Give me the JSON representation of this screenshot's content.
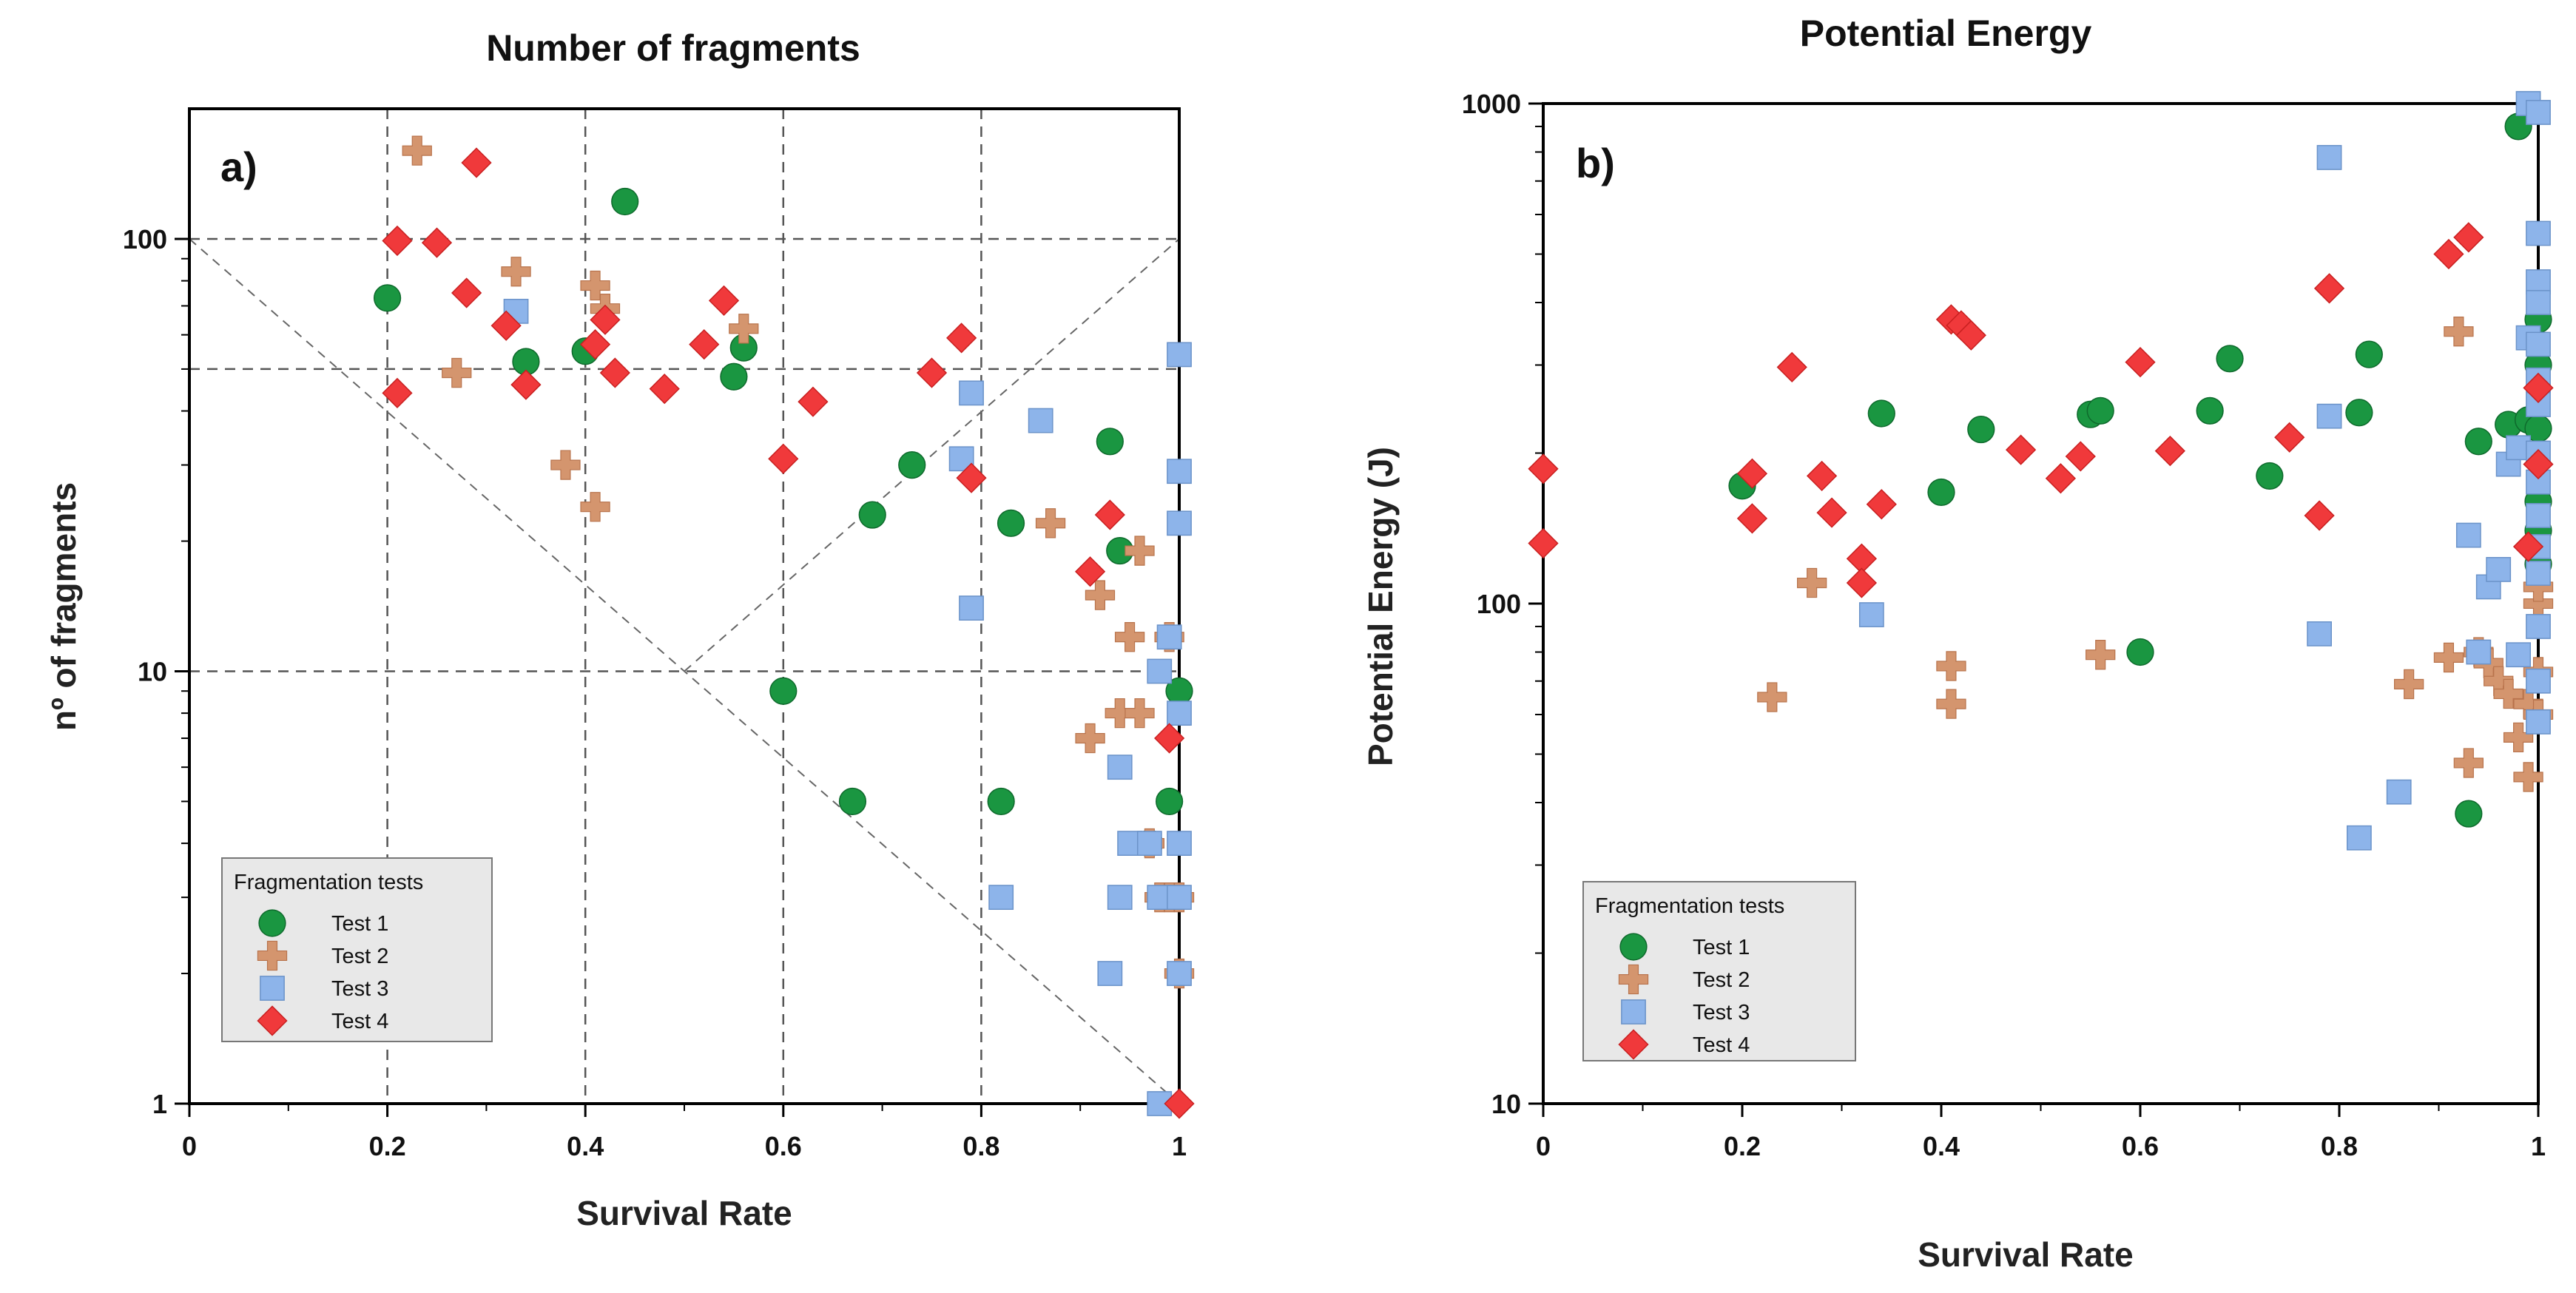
{
  "chart_data": [
    {
      "type": "scatter",
      "title": "Number of fragments",
      "panel_label": "a)",
      "xlabel": "Survival Rate",
      "ylabel": "nº of fragments",
      "xlim": [
        0,
        1
      ],
      "ylim": [
        1,
        200
      ],
      "yscale": "log",
      "grid": "dashed",
      "xticks": [
        0,
        0.2,
        0.4,
        0.6,
        0.8,
        1
      ],
      "xtick_labels": [
        "0",
        "0.2",
        "0.4",
        "0.6",
        "0.8",
        "1"
      ],
      "yticks": [
        1,
        10,
        100
      ],
      "ytick_labels": [
        "1",
        "10",
        "100"
      ],
      "legend": {
        "title": "Fragmentation tests",
        "placement": "bottom-left"
      },
      "series": [
        {
          "name": "Test 1",
          "marker": "circle",
          "color": "#1a9641",
          "points": [
            [
              0.2,
              73
            ],
            [
              0.34,
              52
            ],
            [
              0.4,
              55
            ],
            [
              0.44,
              122
            ],
            [
              0.55,
              48
            ],
            [
              0.56,
              56
            ],
            [
              0.6,
              9
            ],
            [
              0.67,
              5
            ],
            [
              0.69,
              23
            ],
            [
              0.73,
              30
            ],
            [
              0.82,
              5
            ],
            [
              0.83,
              22
            ],
            [
              0.93,
              34
            ],
            [
              0.94,
              19
            ],
            [
              0.97,
              4
            ],
            [
              0.99,
              5
            ],
            [
              1,
              9
            ]
          ]
        },
        {
          "name": "Test 2",
          "marker": "plus",
          "color": "#d4956e",
          "points": [
            [
              0.23,
              160
            ],
            [
              0.27,
              49
            ],
            [
              0.33,
              84
            ],
            [
              0.38,
              30
            ],
            [
              0.41,
              78
            ],
            [
              0.41,
              24
            ],
            [
              0.42,
              69
            ],
            [
              0.56,
              62
            ],
            [
              0.87,
              22
            ],
            [
              0.91,
              7
            ],
            [
              0.92,
              15
            ],
            [
              0.94,
              8
            ],
            [
              0.95,
              12
            ],
            [
              0.96,
              19
            ],
            [
              0.96,
              8
            ],
            [
              0.97,
              4
            ],
            [
              0.98,
              3
            ],
            [
              0.99,
              12
            ],
            [
              0.99,
              3
            ],
            [
              1,
              3
            ],
            [
              1,
              2
            ]
          ]
        },
        {
          "name": "Test 3",
          "marker": "square",
          "color": "#8db4ea",
          "points": [
            [
              0.33,
              68
            ],
            [
              0.78,
              31
            ],
            [
              0.79,
              44
            ],
            [
              0.79,
              14
            ],
            [
              0.82,
              3
            ],
            [
              0.86,
              38
            ],
            [
              0.93,
              2
            ],
            [
              0.94,
              3
            ],
            [
              0.94,
              6
            ],
            [
              0.95,
              4
            ],
            [
              0.97,
              4
            ],
            [
              0.98,
              3
            ],
            [
              0.98,
              10
            ],
            [
              0.98,
              1
            ],
            [
              0.99,
              12
            ],
            [
              1,
              54
            ],
            [
              1,
              29
            ],
            [
              1,
              22
            ],
            [
              1,
              8
            ],
            [
              1,
              4
            ],
            [
              1,
              3
            ],
            [
              1,
              2
            ]
          ]
        },
        {
          "name": "Test 4",
          "marker": "diamond",
          "color": "#f0393b",
          "points": [
            [
              0.21,
              99
            ],
            [
              0.21,
              44
            ],
            [
              0.25,
              98
            ],
            [
              0.28,
              75
            ],
            [
              0.29,
              150
            ],
            [
              0.32,
              63
            ],
            [
              0.34,
              46
            ],
            [
              0.41,
              57
            ],
            [
              0.42,
              65
            ],
            [
              0.43,
              49
            ],
            [
              0.48,
              45
            ],
            [
              0.52,
              57
            ],
            [
              0.54,
              72
            ],
            [
              0.6,
              31
            ],
            [
              0.63,
              42
            ],
            [
              0.75,
              49
            ],
            [
              0.78,
              59
            ],
            [
              0.79,
              28
            ],
            [
              0.91,
              17
            ],
            [
              0.93,
              23
            ],
            [
              0.99,
              7
            ],
            [
              1,
              1
            ]
          ]
        }
      ]
    },
    {
      "type": "scatter",
      "title": "Potential Energy",
      "panel_label": "b)",
      "xlabel": "Survival Rate",
      "ylabel": "Potential Energy (J)",
      "xlim": [
        0,
        1
      ],
      "ylim": [
        10,
        1000
      ],
      "yscale": "log",
      "grid": "none",
      "xticks": [
        0,
        0.2,
        0.4,
        0.6,
        0.8,
        1
      ],
      "xtick_labels": [
        "0",
        "0.2",
        "0.4",
        "0.6",
        "0.8",
        "1"
      ],
      "yticks": [
        10,
        100,
        1000
      ],
      "ytick_labels": [
        "10",
        "100",
        "1000"
      ],
      "legend": {
        "title": "Fragmentation tests",
        "placement": "bottom-left"
      },
      "series": [
        {
          "name": "Test 1",
          "marker": "circle",
          "color": "#1a9641",
          "points": [
            [
              0.2,
              172
            ],
            [
              0.34,
              240
            ],
            [
              0.4,
              167
            ],
            [
              0.44,
              223
            ],
            [
              0.55,
              239
            ],
            [
              0.56,
              243
            ],
            [
              0.6,
              80
            ],
            [
              0.67,
              243
            ],
            [
              0.69,
              309
            ],
            [
              0.73,
              180
            ],
            [
              0.82,
              241
            ],
            [
              0.83,
              315
            ],
            [
              0.93,
              38
            ],
            [
              0.94,
              211
            ],
            [
              0.97,
              228
            ],
            [
              0.98,
              900
            ],
            [
              0.99,
              233
            ],
            [
              1,
              370
            ],
            [
              1,
              300
            ],
            [
              1,
              224
            ],
            [
              1,
              160
            ],
            [
              1,
              140
            ],
            [
              1,
              120
            ]
          ]
        },
        {
          "name": "Test 2",
          "marker": "plus",
          "color": "#d4956e",
          "points": [
            [
              0.23,
              65
            ],
            [
              0.27,
              110
            ],
            [
              0.41,
              75
            ],
            [
              0.41,
              63
            ],
            [
              0.56,
              79
            ],
            [
              0.87,
              69
            ],
            [
              0.91,
              78
            ],
            [
              0.92,
              350
            ],
            [
              0.93,
              48
            ],
            [
              0.94,
              80
            ],
            [
              0.95,
              76
            ],
            [
              0.96,
              70
            ],
            [
              0.97,
              66
            ],
            [
              0.98,
              54
            ],
            [
              0.99,
              63
            ],
            [
              0.99,
              45
            ],
            [
              1,
              73
            ],
            [
              1,
              60
            ],
            [
              1,
              100
            ],
            [
              1,
              108
            ]
          ]
        },
        {
          "name": "Test 3",
          "marker": "square",
          "color": "#8db4ea",
          "points": [
            [
              0.33,
              95
            ],
            [
              0.78,
              87
            ],
            [
              0.79,
              780
            ],
            [
              0.79,
              237
            ],
            [
              0.82,
              34
            ],
            [
              0.86,
              42
            ],
            [
              0.93,
              137
            ],
            [
              0.94,
              80
            ],
            [
              0.95,
              108
            ],
            [
              0.96,
              117
            ],
            [
              0.97,
              190
            ],
            [
              0.98,
              79
            ],
            [
              0.98,
              205
            ],
            [
              0.99,
              340
            ],
            [
              0.99,
              1000
            ],
            [
              1,
              960
            ],
            [
              1,
              550
            ],
            [
              1,
              440
            ],
            [
              1,
              400
            ],
            [
              1,
              330
            ],
            [
              1,
              280
            ],
            [
              1,
              250
            ],
            [
              1,
              200
            ],
            [
              1,
              175
            ],
            [
              1,
              150
            ],
            [
              1,
              130
            ],
            [
              1,
              115
            ],
            [
              1,
              90
            ],
            [
              1,
              70
            ],
            [
              1,
              58
            ]
          ]
        },
        {
          "name": "Test 4",
          "marker": "diamond",
          "color": "#f0393b",
          "points": [
            [
              0,
              186
            ],
            [
              0,
              132
            ],
            [
              0.21,
              182
            ],
            [
              0.21,
              148
            ],
            [
              0.25,
              297
            ],
            [
              0.28,
              180
            ],
            [
              0.29,
              152
            ],
            [
              0.32,
              123
            ],
            [
              0.32,
              110
            ],
            [
              0.34,
              158
            ],
            [
              0.41,
              370
            ],
            [
              0.42,
              360
            ],
            [
              0.43,
              344
            ],
            [
              0.48,
              203
            ],
            [
              0.52,
              178
            ],
            [
              0.54,
              197
            ],
            [
              0.6,
              304
            ],
            [
              0.63,
              202
            ],
            [
              0.75,
              215
            ],
            [
              0.78,
              150
            ],
            [
              0.79,
              427
            ],
            [
              0.91,
              500
            ],
            [
              0.93,
              540
            ],
            [
              0.99,
              130
            ],
            [
              1,
              270
            ],
            [
              1,
              190
            ]
          ]
        }
      ]
    }
  ]
}
